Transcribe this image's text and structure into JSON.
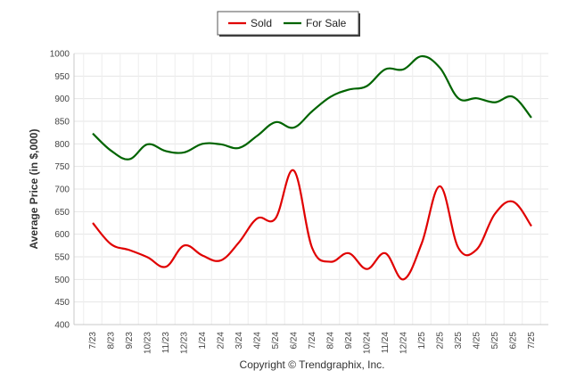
{
  "chart_data": {
    "type": "line",
    "ylabel": "Average Price (in $,000)",
    "xlabel": "",
    "ylim": [
      400,
      1000
    ],
    "yticks": [
      400,
      450,
      500,
      550,
      600,
      650,
      700,
      750,
      800,
      850,
      900,
      950,
      1000
    ],
    "categories": [
      "7/23",
      "8/23",
      "9/23",
      "10/23",
      "11/23",
      "12/23",
      "1/24",
      "2/24",
      "3/24",
      "4/24",
      "5/24",
      "6/24",
      "7/24",
      "8/24",
      "9/24",
      "10/24",
      "11/24",
      "12/24",
      "1/25",
      "2/25",
      "3/25",
      "4/25",
      "5/25",
      "6/25",
      "7/25"
    ],
    "series": [
      {
        "name": "Sold",
        "color": "#e00000",
        "values": [
          625,
          578,
          565,
          549,
          528,
          575,
          553,
          542,
          582,
          635,
          635,
          741,
          570,
          539,
          558,
          523,
          558,
          500,
          580,
          706,
          570,
          566,
          645,
          672,
          618
        ]
      },
      {
        "name": "For Sale",
        "color": "#006400",
        "values": [
          823,
          785,
          766,
          799,
          784,
          781,
          800,
          799,
          791,
          818,
          848,
          836,
          872,
          904,
          920,
          928,
          965,
          965,
          994,
          968,
          901,
          901,
          892,
          904,
          858
        ]
      }
    ],
    "grid": true,
    "legend": "top-center",
    "copyright": "Copyright © Trendgraphix, Inc."
  }
}
